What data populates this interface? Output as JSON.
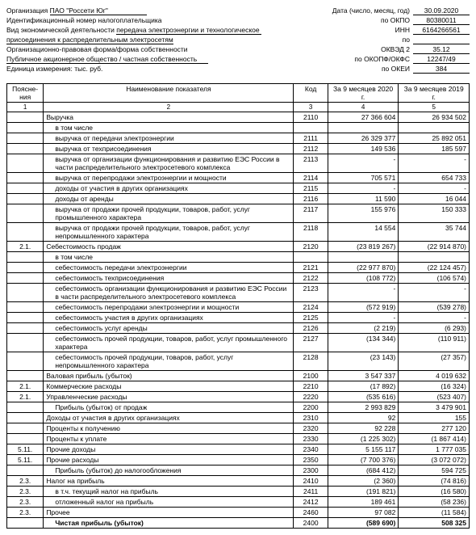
{
  "header": {
    "org_label": "Организация",
    "org_value": "ПАО \"Россети Юг\"",
    "inn_label": "Идентификационный номер налогоплательщика",
    "activity_label": "Вид экономической деятельности",
    "activity_value": "передача электроэнергии и технологическое",
    "activity_value2": "присоединения к распределительным электросетям",
    "form_label": "Организационно-правовая форма/форма собственности",
    "form_value": "Публичное акционерное общество / частная собственность",
    "unit_label": "Единица измерения: тыс. руб.",
    "date_label": "Дата (число, месяц, год)",
    "date_value": "30.09.2020",
    "okpo_label": "по ОКПО",
    "okpo_value": "80380011",
    "inn_right_label": "ИНН",
    "inn_value": "6164266561",
    "okved_label": "по",
    "okved2_label": "ОКВЭД 2",
    "okved2_value": "35.12",
    "okopf_label": "по ОКОПФ/ОКФС",
    "okopf_value": "12247/49",
    "okei_label": "по ОКЕИ",
    "okei_value": "384"
  },
  "table": {
    "headers": {
      "col1": "Поясне-ния",
      "col2": "Наименование показателя",
      "col3": "Код",
      "col4": "За 9 месяцев 2020 г.",
      "col5": "За 9 месяцев 2019 г."
    },
    "colnums": {
      "c1": "1",
      "c2": "2",
      "c3": "3",
      "c4": "4",
      "c5": "5"
    },
    "rows": [
      {
        "expl": "",
        "name": "Выручка",
        "code": "2110",
        "v1": "27 366 604",
        "v2": "26 934 502",
        "indent": false
      },
      {
        "expl": "",
        "name": "в том числе",
        "code": "",
        "v1": "",
        "v2": "",
        "indent": true
      },
      {
        "expl": "",
        "name": "выручка от передачи электроэнергии",
        "code": "2111",
        "v1": "26 329 377",
        "v2": "25 892 051",
        "indent": true
      },
      {
        "expl": "",
        "name": "выручка от техприсоединения",
        "code": "2112",
        "v1": "149 536",
        "v2": "185 597",
        "indent": true
      },
      {
        "expl": "",
        "name": "выручка от организации функционирования и развитию ЕЭС России в части распределительного электросетевого комплекса",
        "code": "2113",
        "v1": "-",
        "v2": "-",
        "indent": true
      },
      {
        "expl": "",
        "name": "выручка от перепродажи электроэнергии и мощности",
        "code": "2114",
        "v1": "705 571",
        "v2": "654 733",
        "indent": true
      },
      {
        "expl": "",
        "name": "доходы от участия в других организациях",
        "code": "2115",
        "v1": "-",
        "v2": "-",
        "indent": true
      },
      {
        "expl": "",
        "name": "доходы от аренды",
        "code": "2116",
        "v1": "11 590",
        "v2": "16 044",
        "indent": true
      },
      {
        "expl": "",
        "name": "выручка от продажи прочей продукции, товаров, работ, услуг промышленного характера",
        "code": "2117",
        "v1": "155 976",
        "v2": "150 333",
        "indent": true
      },
      {
        "expl": "",
        "name": "выручка от продажи прочей продукции, товаров, работ, услуг непромышленного характера",
        "code": "2118",
        "v1": "14 554",
        "v2": "35 744",
        "indent": true
      },
      {
        "expl": "2.1.",
        "name": "Себестоимость продаж",
        "code": "2120",
        "v1": "(23 819 267)",
        "v2": "(22 914 870)",
        "indent": false
      },
      {
        "expl": "",
        "name": "в том числе",
        "code": "",
        "v1": "",
        "v2": "",
        "indent": true
      },
      {
        "expl": "",
        "name": "себестоимость передачи электроэнергии",
        "code": "2121",
        "v1": "(22 977 870)",
        "v2": "(22 124 457)",
        "indent": true
      },
      {
        "expl": "",
        "name": "себестоимость техприсоединения",
        "code": "2122",
        "v1": "(108 772)",
        "v2": "(106 574)",
        "indent": true
      },
      {
        "expl": "",
        "name": "себестоимость организации функционирования и развитию ЕЭС России в части распределительного электросетевого комплекса",
        "code": "2123",
        "v1": "-",
        "v2": "-",
        "indent": true
      },
      {
        "expl": "",
        "name": "себестоимость перепродажи электроэнергии и мощности",
        "code": "2124",
        "v1": "(572 919)",
        "v2": "(539 278)",
        "indent": true
      },
      {
        "expl": "",
        "name": "себестоимость участия в других организациях",
        "code": "2125",
        "v1": "-",
        "v2": "-",
        "indent": true
      },
      {
        "expl": "",
        "name": "себестоимость услуг аренды",
        "code": "2126",
        "v1": "(2 219)",
        "v2": "(6 293)",
        "indent": true
      },
      {
        "expl": "",
        "name": "себестоимость прочей продукции, товаров, работ, услуг промышленного характера",
        "code": "2127",
        "v1": "(134 344)",
        "v2": "(110 911)",
        "indent": true
      },
      {
        "expl": "",
        "name": "себестоимость прочей продукции, товаров, работ, услуг непромышленного характера",
        "code": "2128",
        "v1": "(23 143)",
        "v2": "(27 357)",
        "indent": true
      },
      {
        "expl": "",
        "name": "Валовая прибыль (убыток)",
        "code": "2100",
        "v1": "3 547 337",
        "v2": "4 019 632",
        "indent": false
      },
      {
        "expl": "2.1.",
        "name": "Коммерческие расходы",
        "code": "2210",
        "v1": "(17 892)",
        "v2": "(16 324)",
        "indent": false
      },
      {
        "expl": "2.1.",
        "name": "Управленческие расходы",
        "code": "2220",
        "v1": "(535 616)",
        "v2": "(523 407)",
        "indent": false
      },
      {
        "expl": "",
        "name": "Прибыль (убыток) от продаж",
        "code": "2200",
        "v1": "2 993 829",
        "v2": "3 479 901",
        "indent": true
      },
      {
        "expl": "",
        "name": "Доходы от участия в других организациях",
        "code": "2310",
        "v1": "92",
        "v2": "155",
        "indent": false
      },
      {
        "expl": "",
        "name": "Проценты к получению",
        "code": "2320",
        "v1": "92 228",
        "v2": "277 120",
        "indent": false
      },
      {
        "expl": "",
        "name": "Проценты к уплате",
        "code": "2330",
        "v1": "(1 225 302)",
        "v2": "(1 867 414)",
        "indent": false
      },
      {
        "expl": "5.11.",
        "name": "Прочие доходы",
        "code": "2340",
        "v1": "5 155 117",
        "v2": "1 777 035",
        "indent": false
      },
      {
        "expl": "5.11.",
        "name": "Прочие расходы",
        "code": "2350",
        "v1": "(7 700 376)",
        "v2": "(3 072 072)",
        "indent": false
      },
      {
        "expl": "",
        "name": "Прибыль (убыток) до налогообложения",
        "code": "2300",
        "v1": "(684 412)",
        "v2": "594 725",
        "indent": true
      },
      {
        "expl": "2.3.",
        "name": "Налог на прибыль",
        "code": "2410",
        "v1": "(2 360)",
        "v2": "(74 816)",
        "indent": false
      },
      {
        "expl": "2.3.",
        "name": "в т.ч. текущий налог на прибыль",
        "code": "2411",
        "v1": "(191 821)",
        "v2": "(16 580)",
        "indent": true
      },
      {
        "expl": "2.3.",
        "name": "отложенный налог на прибыль",
        "code": "2412",
        "v1": "189 461",
        "v2": "(58 236)",
        "indent": true
      },
      {
        "expl": "2.3.",
        "name": "Прочее",
        "code": "2460",
        "v1": "97 082",
        "v2": "(11 584)",
        "indent": false
      },
      {
        "expl": "",
        "name": "Чистая прибыль (убыток)",
        "code": "2400",
        "v1": "(589 690)",
        "v2": "508 325",
        "indent": true,
        "bold": true
      }
    ]
  }
}
